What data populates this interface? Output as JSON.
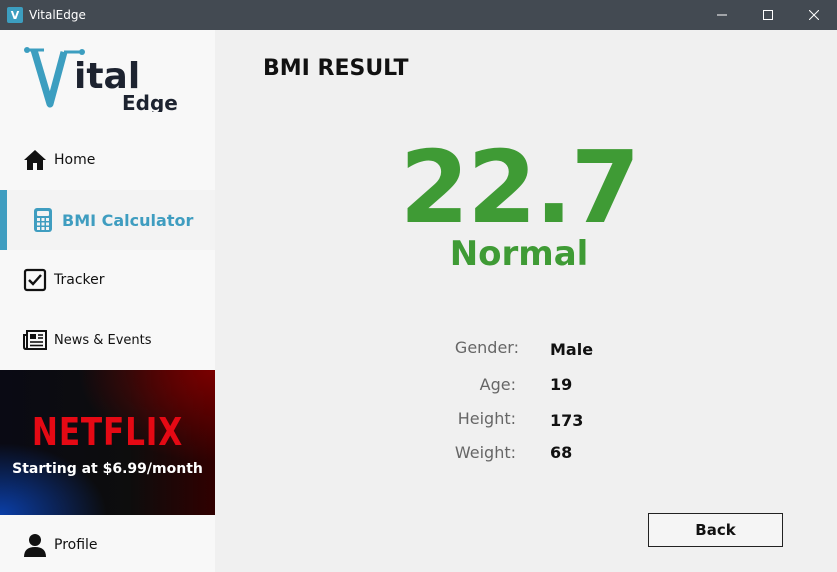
{
  "window": {
    "title": "VitalEdge",
    "icon_letter": "V"
  },
  "sidebar": {
    "logo": {
      "word1": "ital",
      "word2": "Edge"
    },
    "items": [
      {
        "label": "Home",
        "icon": "home-icon"
      },
      {
        "label": "BMI Calculator",
        "icon": "calculator-icon",
        "active": true
      },
      {
        "label": "Tracker",
        "icon": "checkbox-icon"
      },
      {
        "label": "News & Events",
        "icon": "newspaper-icon"
      }
    ],
    "ad": {
      "brand": "NETFLIX",
      "tagline": "Starting at $6.99/month"
    },
    "profile": {
      "label": "Profile",
      "icon": "user-icon"
    }
  },
  "main": {
    "title": "BMI RESULT",
    "bmi_value": "22.7",
    "bmi_category": "Normal",
    "accent_color": "#3f9b35",
    "details": [
      {
        "label": "Gender:",
        "value": "Male"
      },
      {
        "label": "Age:",
        "value": "19"
      },
      {
        "label": "Height:",
        "value": "173"
      },
      {
        "label": "Weight:",
        "value": "68"
      }
    ],
    "back_label": "Back"
  }
}
